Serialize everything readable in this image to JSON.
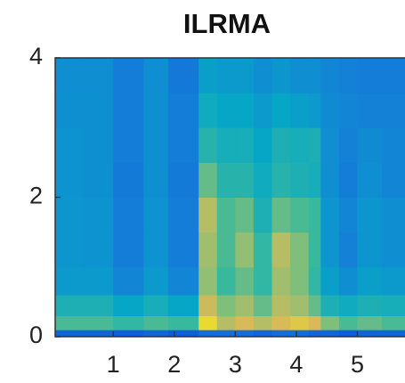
{
  "chart_data": {
    "type": "heatmap",
    "title": "ILRMA",
    "colormap": "parula",
    "x_edges": [
      0.05,
      0.5,
      1.0,
      1.5,
      1.9,
      2.4,
      2.7,
      3.0,
      3.3,
      3.6,
      3.9,
      4.2,
      4.4,
      4.7,
      5.0,
      5.4,
      5.78
    ],
    "y_edges": [
      0,
      0.1,
      0.3,
      0.6,
      1.0,
      1.5,
      2.0,
      2.5,
      3.0,
      3.5,
      4.0
    ],
    "z": [
      [
        0.25,
        0.25,
        0.2,
        0.25,
        0.2,
        0.3,
        0.3,
        0.3,
        0.25,
        0.3,
        0.3,
        0.25,
        0.25,
        0.2,
        0.25,
        0.25
      ],
      [
        0.72,
        0.72,
        0.68,
        0.72,
        0.7,
        0.95,
        0.85,
        0.9,
        0.85,
        0.9,
        0.92,
        0.9,
        0.78,
        0.72,
        0.75,
        0.72
      ],
      [
        0.62,
        0.62,
        0.55,
        0.6,
        0.55,
        0.88,
        0.78,
        0.82,
        0.75,
        0.85,
        0.82,
        0.75,
        0.62,
        0.58,
        0.62,
        0.6
      ],
      [
        0.5,
        0.5,
        0.42,
        0.5,
        0.42,
        0.8,
        0.7,
        0.75,
        0.68,
        0.82,
        0.78,
        0.68,
        0.52,
        0.45,
        0.52,
        0.5
      ],
      [
        0.48,
        0.47,
        0.38,
        0.47,
        0.38,
        0.82,
        0.72,
        0.8,
        0.68,
        0.85,
        0.78,
        0.7,
        0.48,
        0.4,
        0.48,
        0.45
      ],
      [
        0.48,
        0.47,
        0.38,
        0.47,
        0.38,
        0.85,
        0.72,
        0.75,
        0.62,
        0.75,
        0.72,
        0.7,
        0.48,
        0.42,
        0.48,
        0.45
      ],
      [
        0.47,
        0.46,
        0.36,
        0.46,
        0.36,
        0.75,
        0.65,
        0.65,
        0.58,
        0.65,
        0.62,
        0.6,
        0.45,
        0.38,
        0.45,
        0.42
      ],
      [
        0.47,
        0.46,
        0.38,
        0.46,
        0.38,
        0.65,
        0.6,
        0.6,
        0.55,
        0.62,
        0.6,
        0.62,
        0.45,
        0.4,
        0.44,
        0.42
      ],
      [
        0.46,
        0.46,
        0.38,
        0.46,
        0.38,
        0.58,
        0.55,
        0.55,
        0.5,
        0.55,
        0.52,
        0.5,
        0.44,
        0.42,
        0.4,
        0.4
      ],
      [
        0.45,
        0.45,
        0.38,
        0.45,
        0.35,
        0.52,
        0.5,
        0.5,
        0.45,
        0.48,
        0.45,
        0.45,
        0.42,
        0.4,
        0.38,
        0.38
      ]
    ],
    "xlim": [
      0.05,
      5.78
    ],
    "ylim": [
      0,
      4
    ],
    "xticks": [
      1,
      2,
      3,
      4,
      5
    ],
    "yticks": [
      0,
      2,
      4
    ]
  }
}
